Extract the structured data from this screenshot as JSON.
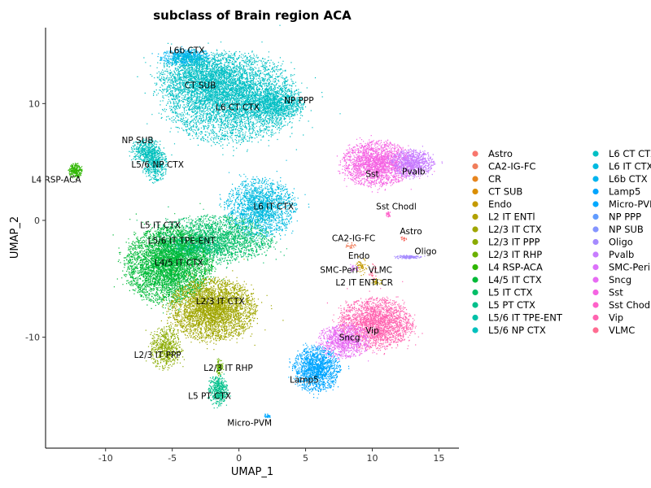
{
  "chart_data": {
    "type": "scatter",
    "title": "subclass of Brain region ACA",
    "xlabel": "UMAP_1",
    "ylabel": "UMAP_2",
    "xlim": [
      -14.5,
      16.5
    ],
    "ylim": [
      -19.5,
      16.5
    ],
    "xticks": [
      -10,
      -5,
      0,
      5,
      10,
      15
    ],
    "yticks": [
      -10,
      0,
      10
    ],
    "grid": false,
    "legend_position": "right",
    "legend_columns": 2,
    "series": [
      {
        "name": "Astro",
        "color": "#F8766D"
      },
      {
        "name": "CA2-IG-FC",
        "color": "#F07D5B"
      },
      {
        "name": "CR",
        "color": "#E7851E"
      },
      {
        "name": "CT SUB",
        "color": "#DB8E00"
      },
      {
        "name": "Endo",
        "color": "#C49A00"
      },
      {
        "name": "L2 IT ENTl",
        "color": "#B2A100"
      },
      {
        "name": "L2/3 IT CTX",
        "color": "#A0A600"
      },
      {
        "name": "L2/3 IT PPP",
        "color": "#8AAB00"
      },
      {
        "name": "L2/3 IT RHP",
        "color": "#6BB100"
      },
      {
        "name": "L4 RSP-ACA",
        "color": "#2EB600"
      },
      {
        "name": "L4/5 IT CTX",
        "color": "#00BA38"
      },
      {
        "name": "L5 IT CTX",
        "color": "#00BE67"
      },
      {
        "name": "L5 PT CTX",
        "color": "#00C08B"
      },
      {
        "name": "L5/6 IT TPE-ENT",
        "color": "#00C1A7"
      },
      {
        "name": "L5/6 NP CTX",
        "color": "#00C0BD"
      },
      {
        "name": "L6 CT CTX",
        "color": "#00BFC4"
      },
      {
        "name": "L6 IT CTX",
        "color": "#00BAE0"
      },
      {
        "name": "L6b CTX",
        "color": "#00B4EF"
      },
      {
        "name": "Lamp5",
        "color": "#00A5FF"
      },
      {
        "name": "Micro-PVM",
        "color": "#00A9FF"
      },
      {
        "name": "NP PPP",
        "color": "#619CFF"
      },
      {
        "name": "NP SUB",
        "color": "#8494FF"
      },
      {
        "name": "Oligo",
        "color": "#A58AFF"
      },
      {
        "name": "Pvalb",
        "color": "#C77CFF"
      },
      {
        "name": "SMC-Peri",
        "color": "#DC71FA"
      },
      {
        "name": "Sncg",
        "color": "#E76BF3"
      },
      {
        "name": "Sst",
        "color": "#F564E3"
      },
      {
        "name": "Sst Chodl",
        "color": "#FF61C9"
      },
      {
        "name": "Vip",
        "color": "#FF64B0"
      },
      {
        "name": "VLMC",
        "color": "#FF6C91"
      }
    ],
    "clusters": [
      {
        "label": "L6b CTX",
        "color": "#00B4EF",
        "x": -4.0,
        "y": 14.0,
        "rx": 1.3,
        "ry": 0.5,
        "n": 220
      },
      {
        "label": "CT SUB",
        "color": "#00BFC4",
        "x": -2.8,
        "y": 12.2,
        "rx": 2.3,
        "ry": 1.5,
        "n": 550
      },
      {
        "label": "L6 CT CTX",
        "color": "#00BFC4",
        "x": -0.6,
        "y": 10.5,
        "rx": 3.4,
        "ry": 2.6,
        "n": 1600
      },
      {
        "label": "NP PPP",
        "color": "#00BFC4",
        "x": 2.6,
        "y": 10.0,
        "rx": 1.5,
        "ry": 1.0,
        "n": 330
      },
      {
        "label": "NP SUB",
        "color": "#00C0BD",
        "x": -7.0,
        "y": 6.0,
        "rx": 0.8,
        "ry": 0.7,
        "n": 150
      },
      {
        "label": "L5/6 NP CTX",
        "color": "#00C0BD",
        "x": -6.3,
        "y": 4.8,
        "rx": 0.6,
        "ry": 1.0,
        "n": 150
      },
      {
        "label": "L4 RSP-ACA",
        "color": "#2EB600",
        "x": -12.3,
        "y": 4.3,
        "rx": 0.35,
        "ry": 0.45,
        "n": 80
      },
      {
        "label": "L6 IT CTX",
        "color": "#00BAE0",
        "x": 1.6,
        "y": 1.1,
        "rx": 1.8,
        "ry": 1.7,
        "n": 650
      },
      {
        "label": "L5 IT CTX",
        "color": "#00BE67",
        "x": -2.0,
        "y": -1.6,
        "rx": 3.0,
        "ry": 1.4,
        "n": 800
      },
      {
        "label": "L5/6 IT TPE-ENT",
        "color": "#00C08B",
        "x": -3.6,
        "y": -2.3,
        "rx": 1.5,
        "ry": 0.6,
        "n": 150
      },
      {
        "label": "L4/5 IT CTX",
        "color": "#00BA38",
        "x": -5.3,
        "y": -3.8,
        "rx": 2.2,
        "ry": 2.2,
        "n": 1500
      },
      {
        "label": "L2/3 IT CTX",
        "color": "#A0A600",
        "x": -2.0,
        "y": -7.6,
        "rx": 2.2,
        "ry": 1.8,
        "n": 1200
      },
      {
        "label": "L2/3 IT PPP",
        "color": "#8AAB00",
        "x": -5.5,
        "y": -10.9,
        "rx": 0.8,
        "ry": 1.3,
        "n": 200
      },
      {
        "label": "L2/3 IT RHP",
        "color": "#6BB100",
        "x": -1.5,
        "y": -12.5,
        "rx": 0.2,
        "ry": 0.5,
        "n": 30
      },
      {
        "label": "L5 PT CTX",
        "color": "#00C08B",
        "x": -1.6,
        "y": -14.5,
        "rx": 0.5,
        "ry": 0.9,
        "n": 150
      },
      {
        "label": "Micro-PVM",
        "color": "#00A9FF",
        "x": 2.1,
        "y": -16.7,
        "rx": 0.15,
        "ry": 0.15,
        "n": 12
      },
      {
        "label": "Sst",
        "color": "#F564E3",
        "x": 10.3,
        "y": 4.9,
        "rx": 1.8,
        "ry": 1.3,
        "n": 700
      },
      {
        "label": "Pvalb",
        "color": "#C77CFF",
        "x": 13.0,
        "y": 4.9,
        "rx": 1.1,
        "ry": 0.8,
        "n": 300
      },
      {
        "label": "Sst Chodl",
        "color": "#FF61C9",
        "x": 11.2,
        "y": 0.6,
        "rx": 0.12,
        "ry": 0.2,
        "n": 10
      },
      {
        "label": "Astro",
        "color": "#F8766D",
        "x": 12.3,
        "y": -1.5,
        "rx": 0.15,
        "ry": 0.15,
        "n": 8
      },
      {
        "label": "CA2-IG-FC",
        "color": "#F07D5B",
        "x": 8.3,
        "y": -2.1,
        "rx": 0.3,
        "ry": 0.2,
        "n": 10
      },
      {
        "label": "Oligo",
        "color": "#A58AFF",
        "x": 12.6,
        "y": -3.1,
        "rx": 0.7,
        "ry": 0.12,
        "n": 40
      },
      {
        "label": "Endo",
        "color": "#C49A00",
        "x": 9.2,
        "y": -3.9,
        "rx": 0.3,
        "ry": 0.5,
        "n": 20
      },
      {
        "label": "SMC-Peri",
        "color": "#DC71FA",
        "x": 8.6,
        "y": -4.1,
        "rx": 0.2,
        "ry": 0.2,
        "n": 10
      },
      {
        "label": "VLMC",
        "color": "#FF6C91",
        "x": 10.0,
        "y": -4.4,
        "rx": 0.2,
        "ry": 0.5,
        "n": 10
      },
      {
        "label": "L2 IT ENTl",
        "color": "#B2A100",
        "x": 10.3,
        "y": -5.2,
        "rx": 0.3,
        "ry": 0.2,
        "n": 10
      },
      {
        "label": "Vip",
        "color": "#FF64B0",
        "x": 10.2,
        "y": -8.8,
        "rx": 1.9,
        "ry": 1.5,
        "n": 800
      },
      {
        "label": "Sncg",
        "color": "#E76BF3",
        "x": 7.8,
        "y": -10.3,
        "rx": 1.3,
        "ry": 1.0,
        "n": 300
      },
      {
        "label": "Lamp5",
        "color": "#00A5FF",
        "x": 5.8,
        "y": -12.7,
        "rx": 1.2,
        "ry": 1.3,
        "n": 500
      }
    ],
    "cluster_labels": [
      {
        "text": "L6b CTX",
        "x": -3.9,
        "y": 14.6
      },
      {
        "text": "CT SUB",
        "x": -2.9,
        "y": 11.6
      },
      {
        "text": "L6 CT CTX",
        "x": -0.1,
        "y": 9.7
      },
      {
        "text": "NP PPP",
        "x": 4.5,
        "y": 10.3
      },
      {
        "text": "NP SUB",
        "x": -7.6,
        "y": 6.9
      },
      {
        "text": "L5/6 NP CTX",
        "x": -6.1,
        "y": 4.8
      },
      {
        "text": "L4 RSP-ACA",
        "x": -13.7,
        "y": 3.5
      },
      {
        "text": "L6 IT CTX",
        "x": 2.6,
        "y": 1.2
      },
      {
        "text": "Sst",
        "x": 10.0,
        "y": 4.0
      },
      {
        "text": "Pvalb",
        "x": 13.1,
        "y": 4.2
      },
      {
        "text": "Sst Chodl",
        "x": 11.8,
        "y": 1.2
      },
      {
        "text": "L5 IT CTX",
        "x": -5.9,
        "y": -0.4
      },
      {
        "text": "L5/6 IT TPE-ENT",
        "x": -4.3,
        "y": -1.7
      },
      {
        "text": "Astro",
        "x": 12.9,
        "y": -0.9
      },
      {
        "text": "CA2-IG-FC",
        "x": 8.6,
        "y": -1.5
      },
      {
        "text": "Oligo",
        "x": 14.0,
        "y": -2.6
      },
      {
        "text": "Endo",
        "x": 9.0,
        "y": -3.0
      },
      {
        "text": "L4/5 IT CTX",
        "x": -4.5,
        "y": -3.6
      },
      {
        "text": "SMC-Peri",
        "x": 7.5,
        "y": -4.2
      },
      {
        "text": "VLMC",
        "x": 10.6,
        "y": -4.2
      },
      {
        "text": "L2 IT ENTl CR",
        "x": 9.4,
        "y": -5.3
      },
      {
        "text": "L2/3 IT CTX",
        "x": -1.4,
        "y": -6.9
      },
      {
        "text": "Vip",
        "x": 10.0,
        "y": -9.4
      },
      {
        "text": "Sncg",
        "x": 8.3,
        "y": -10.0
      },
      {
        "text": "L2/3 IT PPP",
        "x": -6.1,
        "y": -11.5
      },
      {
        "text": "L2/3 IT RHP",
        "x": -0.8,
        "y": -12.6
      },
      {
        "text": "Lamp5",
        "x": 4.9,
        "y": -13.6
      },
      {
        "text": "L5 PT CTX",
        "x": -2.2,
        "y": -15.0
      },
      {
        "text": "Micro-PVM",
        "x": 0.8,
        "y": -17.3
      }
    ]
  }
}
